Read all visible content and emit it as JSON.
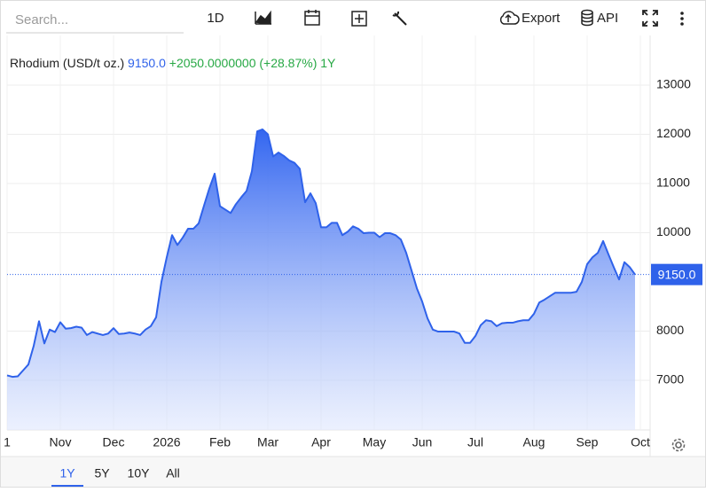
{
  "ui": {
    "search_placeholder": "Search...",
    "interval": "1D",
    "export": "Export",
    "api": "API",
    "ranges": [
      "1Y",
      "5Y",
      "10Y",
      "All"
    ]
  },
  "chart_data": {
    "type": "area",
    "title": "Rhodium (USD/t oz.)",
    "last_label": "9150.0",
    "change": "+2050.0000000",
    "change_pct": "(+28.87%)",
    "range": "1Y",
    "color": "#2f62ea",
    "categories": [
      "1",
      null,
      null,
      null,
      null,
      null,
      null,
      null,
      null,
      null,
      "Nov",
      null,
      null,
      null,
      null,
      null,
      null,
      null,
      null,
      null,
      "Dec",
      null,
      null,
      null,
      null,
      null,
      null,
      null,
      null,
      null,
      "2026",
      null,
      null,
      null,
      null,
      null,
      null,
      null,
      null,
      null,
      "Feb",
      null,
      null,
      null,
      null,
      null,
      null,
      null,
      null,
      "Mar",
      null,
      null,
      null,
      null,
      null,
      null,
      null,
      null,
      null,
      "Apr",
      null,
      null,
      null,
      null,
      null,
      null,
      null,
      null,
      null,
      "May",
      null,
      null,
      null,
      null,
      null,
      null,
      null,
      null,
      "Jun",
      null,
      null,
      null,
      null,
      null,
      null,
      null,
      null,
      null,
      "Jul",
      null,
      null,
      null,
      null,
      null,
      null,
      null,
      null,
      null,
      null,
      "Aug",
      null,
      null,
      null,
      null,
      null,
      null,
      null,
      null,
      null,
      "Sep",
      null,
      null,
      null,
      null,
      null,
      null,
      null,
      null,
      null,
      "Oct"
    ],
    "values": [
      7100,
      7070,
      7080,
      7200,
      7320,
      7700,
      8200,
      7750,
      8030,
      7980,
      8180,
      8050,
      8060,
      8090,
      8070,
      7920,
      7980,
      7950,
      7920,
      7950,
      8060,
      7940,
      7950,
      7970,
      7950,
      7920,
      8030,
      8100,
      8280,
      9000,
      9500,
      9950,
      9750,
      9900,
      10080,
      10080,
      10190,
      10550,
      10900,
      11200,
      10540,
      10470,
      10400,
      10580,
      10720,
      10850,
      11250,
      12060,
      12100,
      12000,
      11550,
      11630,
      11560,
      11470,
      11420,
      11300,
      10620,
      10800,
      10600,
      10110,
      10110,
      10200,
      10200,
      9950,
      10020,
      10130,
      10080,
      9990,
      10000,
      10000,
      9910,
      9990,
      9990,
      9950,
      9860,
      9590,
      9230,
      8870,
      8600,
      8260,
      8030,
      7990,
      7990,
      7990,
      7990,
      7950,
      7760,
      7760,
      7900,
      8120,
      8220,
      8200,
      8100,
      8160,
      8170,
      8170,
      8200,
      8220,
      8220,
      8350,
      8580,
      8640,
      8710,
      8780,
      8780,
      8780,
      8780,
      8800,
      9000,
      9360,
      9500,
      9590,
      9830,
      9560,
      9300,
      9050,
      9400,
      9300,
      9150,
      null
    ],
    "ylim": [
      5990,
      14010
    ],
    "yticks": [
      7000,
      8000,
      10000,
      11000,
      12000,
      13000
    ],
    "grid": true
  }
}
